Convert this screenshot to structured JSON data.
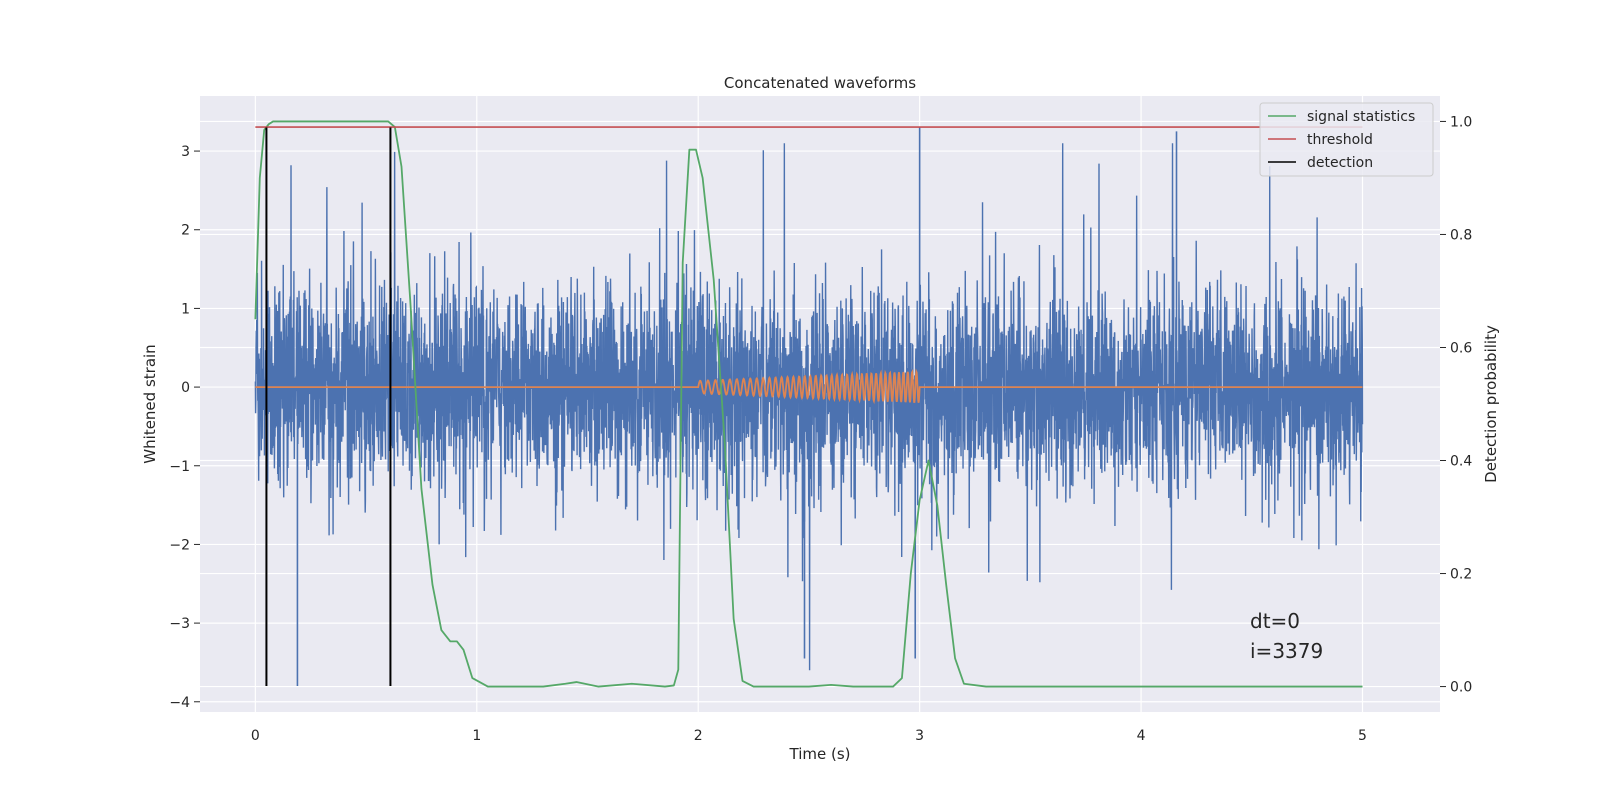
{
  "chart_data": {
    "type": "line",
    "title": "Concatenated waveforms",
    "xlabel": "Time (s)",
    "ylabel": "Whitened strain",
    "y2label": "Detection probability",
    "xlim": [
      -0.25,
      5.35
    ],
    "ylim": [
      -4.13,
      3.7
    ],
    "y2lim": [
      -0.045,
      1.045
    ],
    "x_ticks": [
      0,
      1,
      2,
      3,
      4,
      5
    ],
    "x_tick_labels": [
      "0",
      "1",
      "2",
      "3",
      "4",
      "5"
    ],
    "y_ticks": [
      -4,
      -3,
      -2,
      -1,
      0,
      1,
      2,
      3
    ],
    "y_tick_labels": [
      "−4",
      "−3",
      "−2",
      "−1",
      "0",
      "1",
      "2",
      "3"
    ],
    "y2_ticks": [
      0.0,
      0.2,
      0.4,
      0.6,
      0.8,
      1.0
    ],
    "y2_tick_labels": [
      "0.0",
      "0.2",
      "0.4",
      "0.6",
      "0.8",
      "1.0"
    ],
    "grid": true,
    "legend_position": "top-right",
    "series": [
      {
        "axis": "left",
        "style": "noise",
        "color": "#4c72b0",
        "x_range": [
          0,
          5
        ],
        "envelope_typical": 1.0,
        "envelope_peak": 3.3,
        "notable_peaks": [
          [
            0.19,
            -3.8
          ],
          [
            3.0,
            3.3
          ],
          [
            4.16,
            3.25
          ],
          [
            2.98,
            -3.45
          ],
          [
            2.48,
            -3.45
          ]
        ]
      },
      {
        "axis": "left",
        "style": "chirp",
        "color": "#dd8452",
        "x_range": [
          0,
          5
        ],
        "chirp_start": 2.0,
        "chirp_end": 3.0,
        "amplitude_start": 0.08,
        "amplitude_end": 0.2,
        "cycles": 40
      },
      {
        "axis": "right",
        "name": "signal statistics",
        "color": "#55a868",
        "x": [
          0,
          0.02,
          0.04,
          0.06,
          0.08,
          0.1,
          0.55,
          0.6,
          0.63,
          0.66,
          0.7,
          0.75,
          0.8,
          0.84,
          0.88,
          0.91,
          0.94,
          0.98,
          1.05,
          1.3,
          1.4,
          1.45,
          1.55,
          1.7,
          1.85,
          1.89,
          1.91,
          1.93,
          1.96,
          1.99,
          2.02,
          2.07,
          2.12,
          2.16,
          2.2,
          2.25,
          2.5,
          2.6,
          2.7,
          2.88,
          2.92,
          2.96,
          3.0,
          3.04,
          3.08,
          3.12,
          3.16,
          3.2,
          3.3,
          5.0
        ],
        "y": [
          0.65,
          0.9,
          0.985,
          0.995,
          1.0,
          1.0,
          1.0,
          1.0,
          0.99,
          0.92,
          0.68,
          0.35,
          0.18,
          0.1,
          0.08,
          0.08,
          0.065,
          0.015,
          0.0,
          0.0,
          0.005,
          0.008,
          0.0,
          0.005,
          0.0,
          0.002,
          0.03,
          0.75,
          0.95,
          0.95,
          0.9,
          0.72,
          0.43,
          0.12,
          0.01,
          0.0,
          0.0,
          0.003,
          0.0,
          0.0,
          0.015,
          0.2,
          0.33,
          0.4,
          0.32,
          0.18,
          0.05,
          0.005,
          0.0,
          0.0
        ]
      },
      {
        "axis": "right",
        "name": "threshold",
        "color": "#c44e52",
        "x": [
          0,
          5
        ],
        "y": [
          0.99,
          0.99
        ]
      },
      {
        "axis": "left",
        "name": "detection",
        "color": "#000000",
        "style": "vlines",
        "x": [
          0.05,
          0.61
        ],
        "y_range": [
          -3.8,
          3.3
        ]
      }
    ],
    "annotation_lines": [
      "dt=0",
      "i=3379"
    ]
  }
}
